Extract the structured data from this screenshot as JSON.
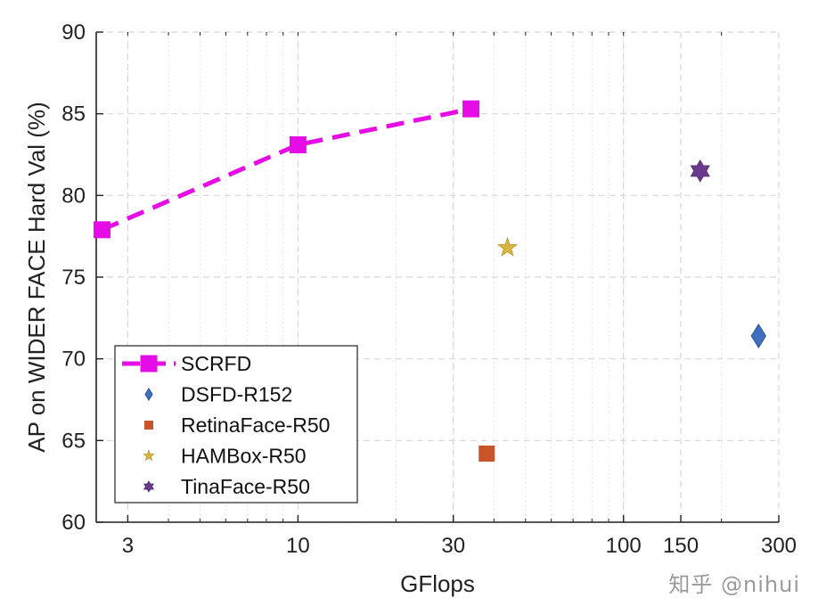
{
  "chart_data": {
    "type": "scatter",
    "xscale": "log",
    "xlim": [
      2.4,
      300
    ],
    "ylim": [
      60,
      90
    ],
    "xlabel": "GFlops",
    "ylabel": "AP on WIDER FACE Hard Val (%)",
    "xticks": [
      3,
      10,
      30,
      100,
      150,
      300
    ],
    "yticks": [
      60,
      65,
      70,
      75,
      80,
      85,
      90
    ],
    "grid": true,
    "legend_position": "bottom-left",
    "series": [
      {
        "name": "SCRFD",
        "marker": "square",
        "line": "dashed",
        "color": "#e60ce6",
        "points": [
          {
            "x": 2.5,
            "y": 77.9
          },
          {
            "x": 10,
            "y": 83.1
          },
          {
            "x": 34,
            "y": 85.3
          }
        ]
      },
      {
        "name": "DSFD-R152",
        "marker": "diamond",
        "line": "none",
        "color": "#3f6fbf",
        "points": [
          {
            "x": 260,
            "y": 71.4
          }
        ]
      },
      {
        "name": "RetinaFace-R50",
        "marker": "square",
        "line": "none",
        "color": "#c8542a",
        "points": [
          {
            "x": 38,
            "y": 64.2
          }
        ]
      },
      {
        "name": "HAMBox-R50",
        "marker": "star",
        "line": "none",
        "color": "#d9b53e",
        "points": [
          {
            "x": 44,
            "y": 76.8
          }
        ]
      },
      {
        "name": "TinaFace-R50",
        "marker": "hexagram",
        "line": "none",
        "color": "#6b3a8c",
        "points": [
          {
            "x": 172,
            "y": 81.5
          }
        ]
      }
    ]
  },
  "watermark": "知乎 @nihui"
}
